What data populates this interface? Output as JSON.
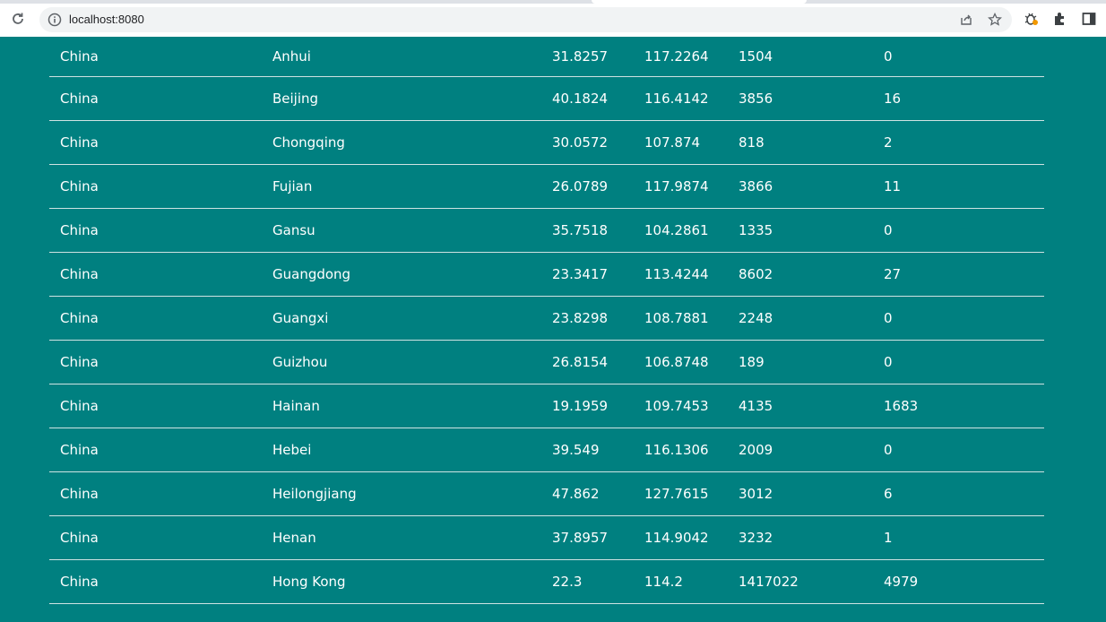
{
  "browser": {
    "url": "localhost:8080"
  },
  "table": {
    "rows": [
      [
        "China",
        "Anhui",
        "31.8257",
        "117.2264",
        "1504",
        "0"
      ],
      [
        "China",
        "Beijing",
        "40.1824",
        "116.4142",
        "3856",
        "16"
      ],
      [
        "China",
        "Chongqing",
        "30.0572",
        "107.874",
        "818",
        "2"
      ],
      [
        "China",
        "Fujian",
        "26.0789",
        "117.9874",
        "3866",
        "11"
      ],
      [
        "China",
        "Gansu",
        "35.7518",
        "104.2861",
        "1335",
        "0"
      ],
      [
        "China",
        "Guangdong",
        "23.3417",
        "113.4244",
        "8602",
        "27"
      ],
      [
        "China",
        "Guangxi",
        "23.8298",
        "108.7881",
        "2248",
        "0"
      ],
      [
        "China",
        "Guizhou",
        "26.8154",
        "106.8748",
        "189",
        "0"
      ],
      [
        "China",
        "Hainan",
        "19.1959",
        "109.7453",
        "4135",
        "1683"
      ],
      [
        "China",
        "Hebei",
        "39.549",
        "116.1306",
        "2009",
        "0"
      ],
      [
        "China",
        "Heilongjiang",
        "47.862",
        "127.7615",
        "3012",
        "6"
      ],
      [
        "China",
        "Henan",
        "37.8957",
        "114.9042",
        "3232",
        "1"
      ],
      [
        "China",
        "Hong Kong",
        "22.3",
        "114.2",
        "1417022",
        "4979"
      ]
    ]
  },
  "colors": {
    "page_background": "#008080",
    "text": "#ffffff"
  }
}
